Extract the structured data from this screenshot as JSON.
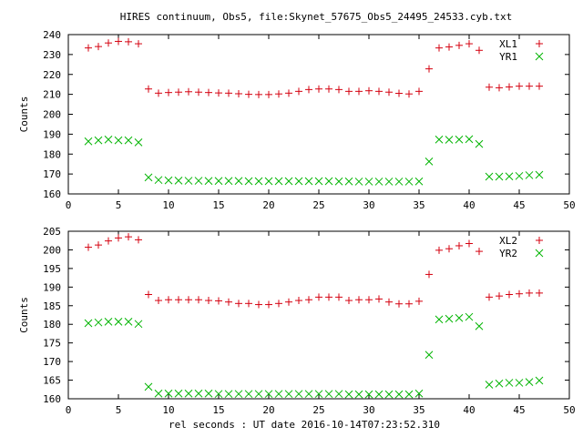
{
  "title": "HIRES continuum, Obs5, file:Skynet_57675_Obs5_24495_24533.cyb.txt",
  "chart_data": [
    {
      "type": "scatter",
      "ylabel": "Counts",
      "xlabel": "",
      "xlim": [
        0,
        50
      ],
      "ylim": [
        160,
        240
      ],
      "x_ticks": [
        0,
        5,
        10,
        15,
        20,
        25,
        30,
        35,
        40,
        45,
        50
      ],
      "y_ticks": [
        160,
        170,
        180,
        190,
        200,
        210,
        220,
        230,
        240
      ],
      "legend_position": "top-right",
      "x": [
        2,
        3,
        4,
        5,
        6,
        7,
        8,
        9,
        10,
        11,
        12,
        13,
        14,
        15,
        16,
        17,
        18,
        19,
        20,
        21,
        22,
        23,
        24,
        25,
        26,
        27,
        28,
        29,
        30,
        31,
        32,
        33,
        34,
        35,
        36,
        37,
        38,
        39,
        40,
        41,
        42,
        43,
        44,
        45,
        46,
        47
      ],
      "series": [
        {
          "name": "XL1",
          "marker": "plus",
          "color": "#d4000f",
          "values": [
            233.3,
            234.0,
            235.8,
            236.6,
            236.4,
            235.4,
            212.7,
            210.6,
            210.9,
            211.1,
            211.3,
            211.1,
            210.9,
            210.7,
            210.6,
            210.3,
            210.0,
            209.9,
            209.9,
            210.2,
            210.6,
            211.5,
            212.4,
            212.7,
            212.7,
            212.4,
            211.5,
            211.5,
            211.8,
            211.5,
            211.1,
            210.5,
            210.2,
            211.5,
            222.8,
            233.3,
            233.8,
            234.6,
            235.4,
            232.1,
            213.6,
            213.3,
            213.7,
            214.1,
            214.1,
            214.1
          ]
        },
        {
          "name": "YR1",
          "marker": "x",
          "color": "#00b400",
          "values": [
            186.4,
            186.9,
            187.3,
            186.9,
            186.9,
            185.9,
            168.3,
            167.0,
            166.8,
            166.7,
            166.6,
            166.6,
            166.5,
            166.5,
            166.5,
            166.5,
            166.4,
            166.4,
            166.4,
            166.4,
            166.4,
            166.4,
            166.4,
            166.4,
            166.4,
            166.3,
            166.3,
            166.2,
            166.2,
            166.2,
            166.2,
            166.2,
            166.2,
            166.3,
            176.3,
            187.3,
            187.2,
            187.3,
            187.5,
            185.1,
            168.7,
            168.7,
            168.8,
            169.0,
            169.4,
            169.6
          ]
        }
      ]
    },
    {
      "type": "scatter",
      "ylabel": "Counts",
      "xlabel": "rel seconds : UT date 2016-10-14T07:23:52.310",
      "xlim": [
        0,
        50
      ],
      "ylim": [
        160,
        205
      ],
      "x_ticks": [
        0,
        5,
        10,
        15,
        20,
        25,
        30,
        35,
        40,
        45,
        50
      ],
      "y_ticks": [
        160,
        165,
        170,
        175,
        180,
        185,
        190,
        195,
        200,
        205
      ],
      "legend_position": "top-right",
      "x": [
        2,
        3,
        4,
        5,
        6,
        7,
        8,
        9,
        10,
        11,
        12,
        13,
        14,
        15,
        16,
        17,
        18,
        19,
        20,
        21,
        22,
        23,
        24,
        25,
        26,
        27,
        28,
        29,
        30,
        31,
        32,
        33,
        34,
        35,
        36,
        37,
        38,
        39,
        40,
        41,
        42,
        43,
        44,
        45,
        46,
        47
      ],
      "series": [
        {
          "name": "XL2",
          "marker": "plus",
          "color": "#d4000f",
          "values": [
            200.7,
            201.3,
            202.4,
            203.2,
            203.5,
            202.7,
            188.0,
            186.4,
            186.6,
            186.6,
            186.6,
            186.6,
            186.4,
            186.3,
            186.0,
            185.6,
            185.6,
            185.3,
            185.3,
            185.6,
            186.0,
            186.4,
            186.6,
            187.3,
            187.3,
            187.3,
            186.4,
            186.6,
            186.6,
            186.8,
            186.0,
            185.5,
            185.5,
            186.2,
            193.4,
            199.9,
            200.3,
            201.1,
            201.7,
            199.6,
            187.3,
            187.6,
            188.0,
            188.2,
            188.4,
            188.4
          ]
        },
        {
          "name": "YR2",
          "marker": "x",
          "color": "#00b400",
          "values": [
            180.3,
            180.5,
            180.7,
            180.7,
            180.7,
            180.1,
            163.2,
            161.4,
            161.4,
            161.4,
            161.4,
            161.4,
            161.4,
            161.3,
            161.3,
            161.3,
            161.3,
            161.3,
            161.3,
            161.3,
            161.3,
            161.3,
            161.3,
            161.3,
            161.3,
            161.3,
            161.2,
            161.2,
            161.2,
            161.2,
            161.2,
            161.2,
            161.2,
            161.4,
            171.8,
            181.3,
            181.5,
            181.7,
            182.0,
            179.5,
            163.8,
            164.1,
            164.3,
            164.3,
            164.5,
            164.9
          ]
        }
      ]
    }
  ]
}
